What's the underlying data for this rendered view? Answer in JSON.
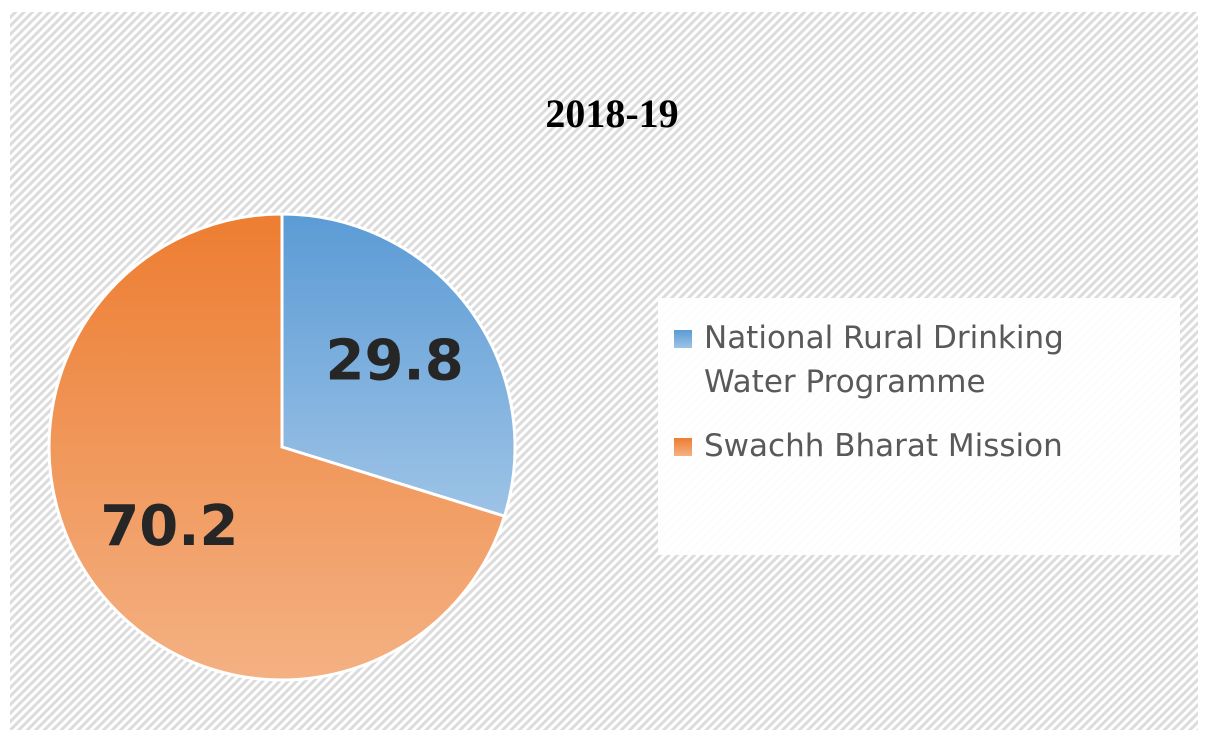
{
  "chart_data": {
    "type": "pie",
    "title": "2018-19",
    "categories": [
      "National Rural Drinking Water Programme",
      "Swachh Bharat Mission"
    ],
    "values": [
      29.8,
      70.2
    ],
    "colors": [
      "#5b9bd5",
      "#ed7d31"
    ],
    "legend": "right"
  }
}
